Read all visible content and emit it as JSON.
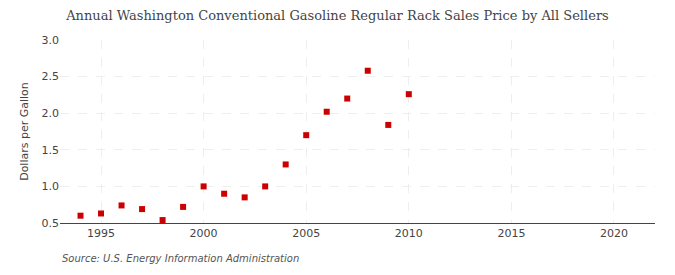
{
  "chart_data": {
    "type": "scatter",
    "title": "Annual Washington Conventional Gasoline Regular Rack Sales Price by All Sellers",
    "ylabel": "Dollars per Gallon",
    "source": "Source: U.S. Energy Information Administration",
    "x": [
      1994,
      1995,
      1996,
      1997,
      1998,
      1999,
      2000,
      2001,
      2002,
      2003,
      2004,
      2005,
      2006,
      2007,
      2008,
      2009,
      2010
    ],
    "values": [
      0.6,
      0.63,
      0.74,
      0.69,
      0.54,
      0.72,
      1.0,
      0.9,
      0.85,
      1.0,
      1.3,
      1.7,
      2.02,
      2.2,
      2.58,
      1.84,
      2.26
    ],
    "color": "#cc0000",
    "marker": "square",
    "xlim": [
      1993,
      2022
    ],
    "ylim": [
      0.5,
      3.0
    ],
    "xticks": [
      1995,
      2000,
      2005,
      2010,
      2015,
      2020
    ],
    "yticks": [
      0.5,
      {
        "value": 1.0,
        "label": "1.0"
      },
      1.5,
      {
        "value": 2.0,
        "label": "2.0"
      },
      2.5,
      {
        "value": 3.0,
        "label": "3.0"
      }
    ],
    "grid": true
  }
}
